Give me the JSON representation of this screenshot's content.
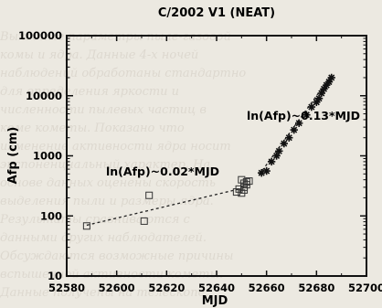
{
  "chart_data": {
    "type": "scatter",
    "title": "C/2002 V1 (NEAT)",
    "xlabel": "MJD",
    "ylabel": "Afp (cm)",
    "xlim": [
      52580,
      52700
    ],
    "ylim": [
      10,
      100000
    ],
    "yscale": "log",
    "grid": false,
    "x_ticks": [
      "52580",
      "52600",
      "52620",
      "52640",
      "52660",
      "52680",
      "52700"
    ],
    "y_ticks": [
      "10",
      "100",
      "1000",
      "10000",
      "100000"
    ],
    "series": [
      {
        "marker": "open-square",
        "points": [
          [
            52588,
            68
          ],
          [
            52611,
            82
          ],
          [
            52613,
            220
          ],
          [
            52649,
            280
          ],
          [
            52651,
            350
          ],
          [
            52650,
            400
          ],
          [
            52652,
            330
          ],
          [
            52648,
            250
          ],
          [
            52650,
            240
          ],
          [
            52651,
            300
          ],
          [
            52652,
            370
          ],
          [
            52651,
            270
          ],
          [
            52653,
            380
          ]
        ]
      },
      {
        "marker": "star",
        "points": [
          [
            52658,
            520
          ],
          [
            52660,
            560
          ],
          [
            52662,
            800
          ],
          [
            52664,
            1000
          ],
          [
            52665,
            1200
          ],
          [
            52667,
            1600
          ],
          [
            52669,
            2000
          ],
          [
            52671,
            2700
          ],
          [
            52673,
            3500
          ],
          [
            52676,
            4800
          ],
          [
            52678,
            6500
          ],
          [
            52680,
            7800
          ],
          [
            52681,
            9000
          ],
          [
            52682,
            11000
          ],
          [
            52683,
            13000
          ],
          [
            52684,
            15000
          ],
          [
            52685,
            17000
          ],
          [
            52686,
            20000
          ]
        ]
      }
    ],
    "fits": [
      {
        "label": "ln(Afp)~0.02*MJD",
        "x": [
          52588,
          52652
        ],
        "y": [
          70,
          300
        ]
      },
      {
        "label": "ln(Afp)~0.13*MJD",
        "x": [
          52657,
          52686
        ],
        "y": [
          480,
          22000
        ]
      }
    ]
  }
}
